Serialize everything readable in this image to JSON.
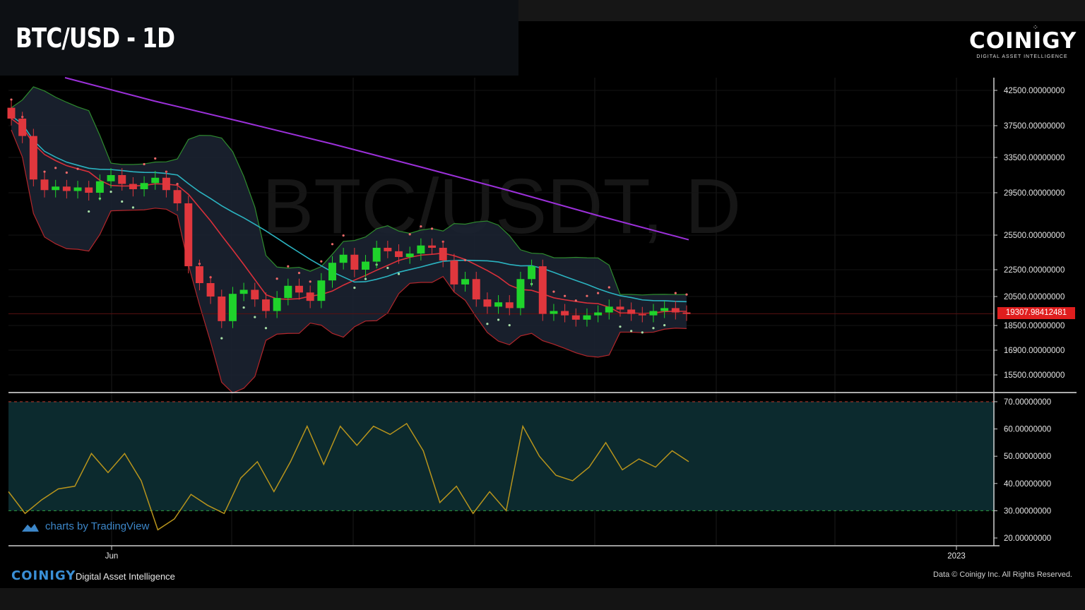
{
  "header": {
    "title": "BTC/USD - 1D"
  },
  "logo": {
    "name": "COINIGY",
    "tagline": "DIGITAL ASSET INTELLIGENCE"
  },
  "watermark": "BTC/USDT, D",
  "footer": {
    "brand": "COINIGY",
    "tagline": "Digital Asset Intelligence",
    "copyright": "Data © Coinigy Inc.  All Rights Reserved.",
    "tradingview": "charts by TradingView"
  },
  "colors": {
    "up": "#1fd32b",
    "down": "#e0373d",
    "ma_long": "#9b30d9",
    "ma_mid": "#2bb3c0",
    "ma_short": "#d9303a",
    "band_edge": "#2e8b2e",
    "band_fill": "#1b2231",
    "rsi_line": "#b8941c",
    "rsi_zone": "#0c2a2e",
    "price_tag": "#e01e1e"
  },
  "chart_data": [
    {
      "type": "candlestick",
      "title": "BTC/USD - 1D",
      "y_ticks": [
        "42500.00000000",
        "37500.00000000",
        "33500.00000000",
        "29500.00000000",
        "25500.00000000",
        "22500.00000000",
        "20500.00000000",
        "18500.00000000",
        "16900.00000000",
        "15500.00000000"
      ],
      "y_tick_values": [
        42500,
        37500,
        33500,
        29500,
        25500,
        22500,
        20500,
        18500,
        16900,
        15500
      ],
      "x_tick_labels": [
        "Jun",
        "2023"
      ],
      "last_price": "19307.98412481",
      "close_series_approx": [
        38500,
        36200,
        31000,
        29800,
        30200,
        29700,
        30100,
        29500,
        30800,
        31500,
        30500,
        29900,
        30600,
        31200,
        29800,
        28500,
        22800,
        21500,
        20500,
        18800,
        20700,
        21000,
        20300,
        19500,
        20400,
        21300,
        20800,
        20200,
        21700,
        23100,
        23800,
        22500,
        23200,
        24400,
        24100,
        23600,
        23900,
        24600,
        24400,
        23300,
        21400,
        21800,
        20300,
        19800,
        20100,
        19700,
        21800,
        22800,
        19300,
        19500,
        19200,
        18900,
        19200,
        19400,
        19800,
        19600,
        19300,
        19200,
        19500,
        19700,
        19400,
        19300
      ],
      "series": [
        {
          "name": "MA long",
          "values_approx": [
            44000,
            41000,
            38000,
            35200,
            32400,
            29700,
            27300,
            25100
          ]
        },
        {
          "name": "Bollinger basis",
          "values_approx": [
            40000,
            33500,
            28500,
            25200,
            22500,
            22300,
            22500,
            21000,
            19900,
            19400
          ]
        },
        {
          "name": "RSI",
          "values_approx": [
            37,
            29,
            34,
            38,
            39,
            51,
            44,
            51,
            41,
            23,
            27,
            36,
            32,
            29,
            42,
            48,
            37,
            48,
            61,
            47,
            61,
            54,
            61,
            58,
            62,
            52,
            33,
            39,
            29,
            37,
            30,
            61,
            50,
            43,
            41,
            46,
            55,
            45,
            49,
            46,
            52,
            48
          ]
        }
      ]
    },
    {
      "type": "line",
      "title": "",
      "y_ticks": [
        "70.00000000",
        "60.00000000",
        "50.00000000",
        "40.00000000",
        "30.00000000",
        "20.00000000"
      ],
      "y_tick_values": [
        70,
        60,
        50,
        40,
        30,
        20
      ],
      "bands": [
        30,
        70
      ]
    }
  ]
}
